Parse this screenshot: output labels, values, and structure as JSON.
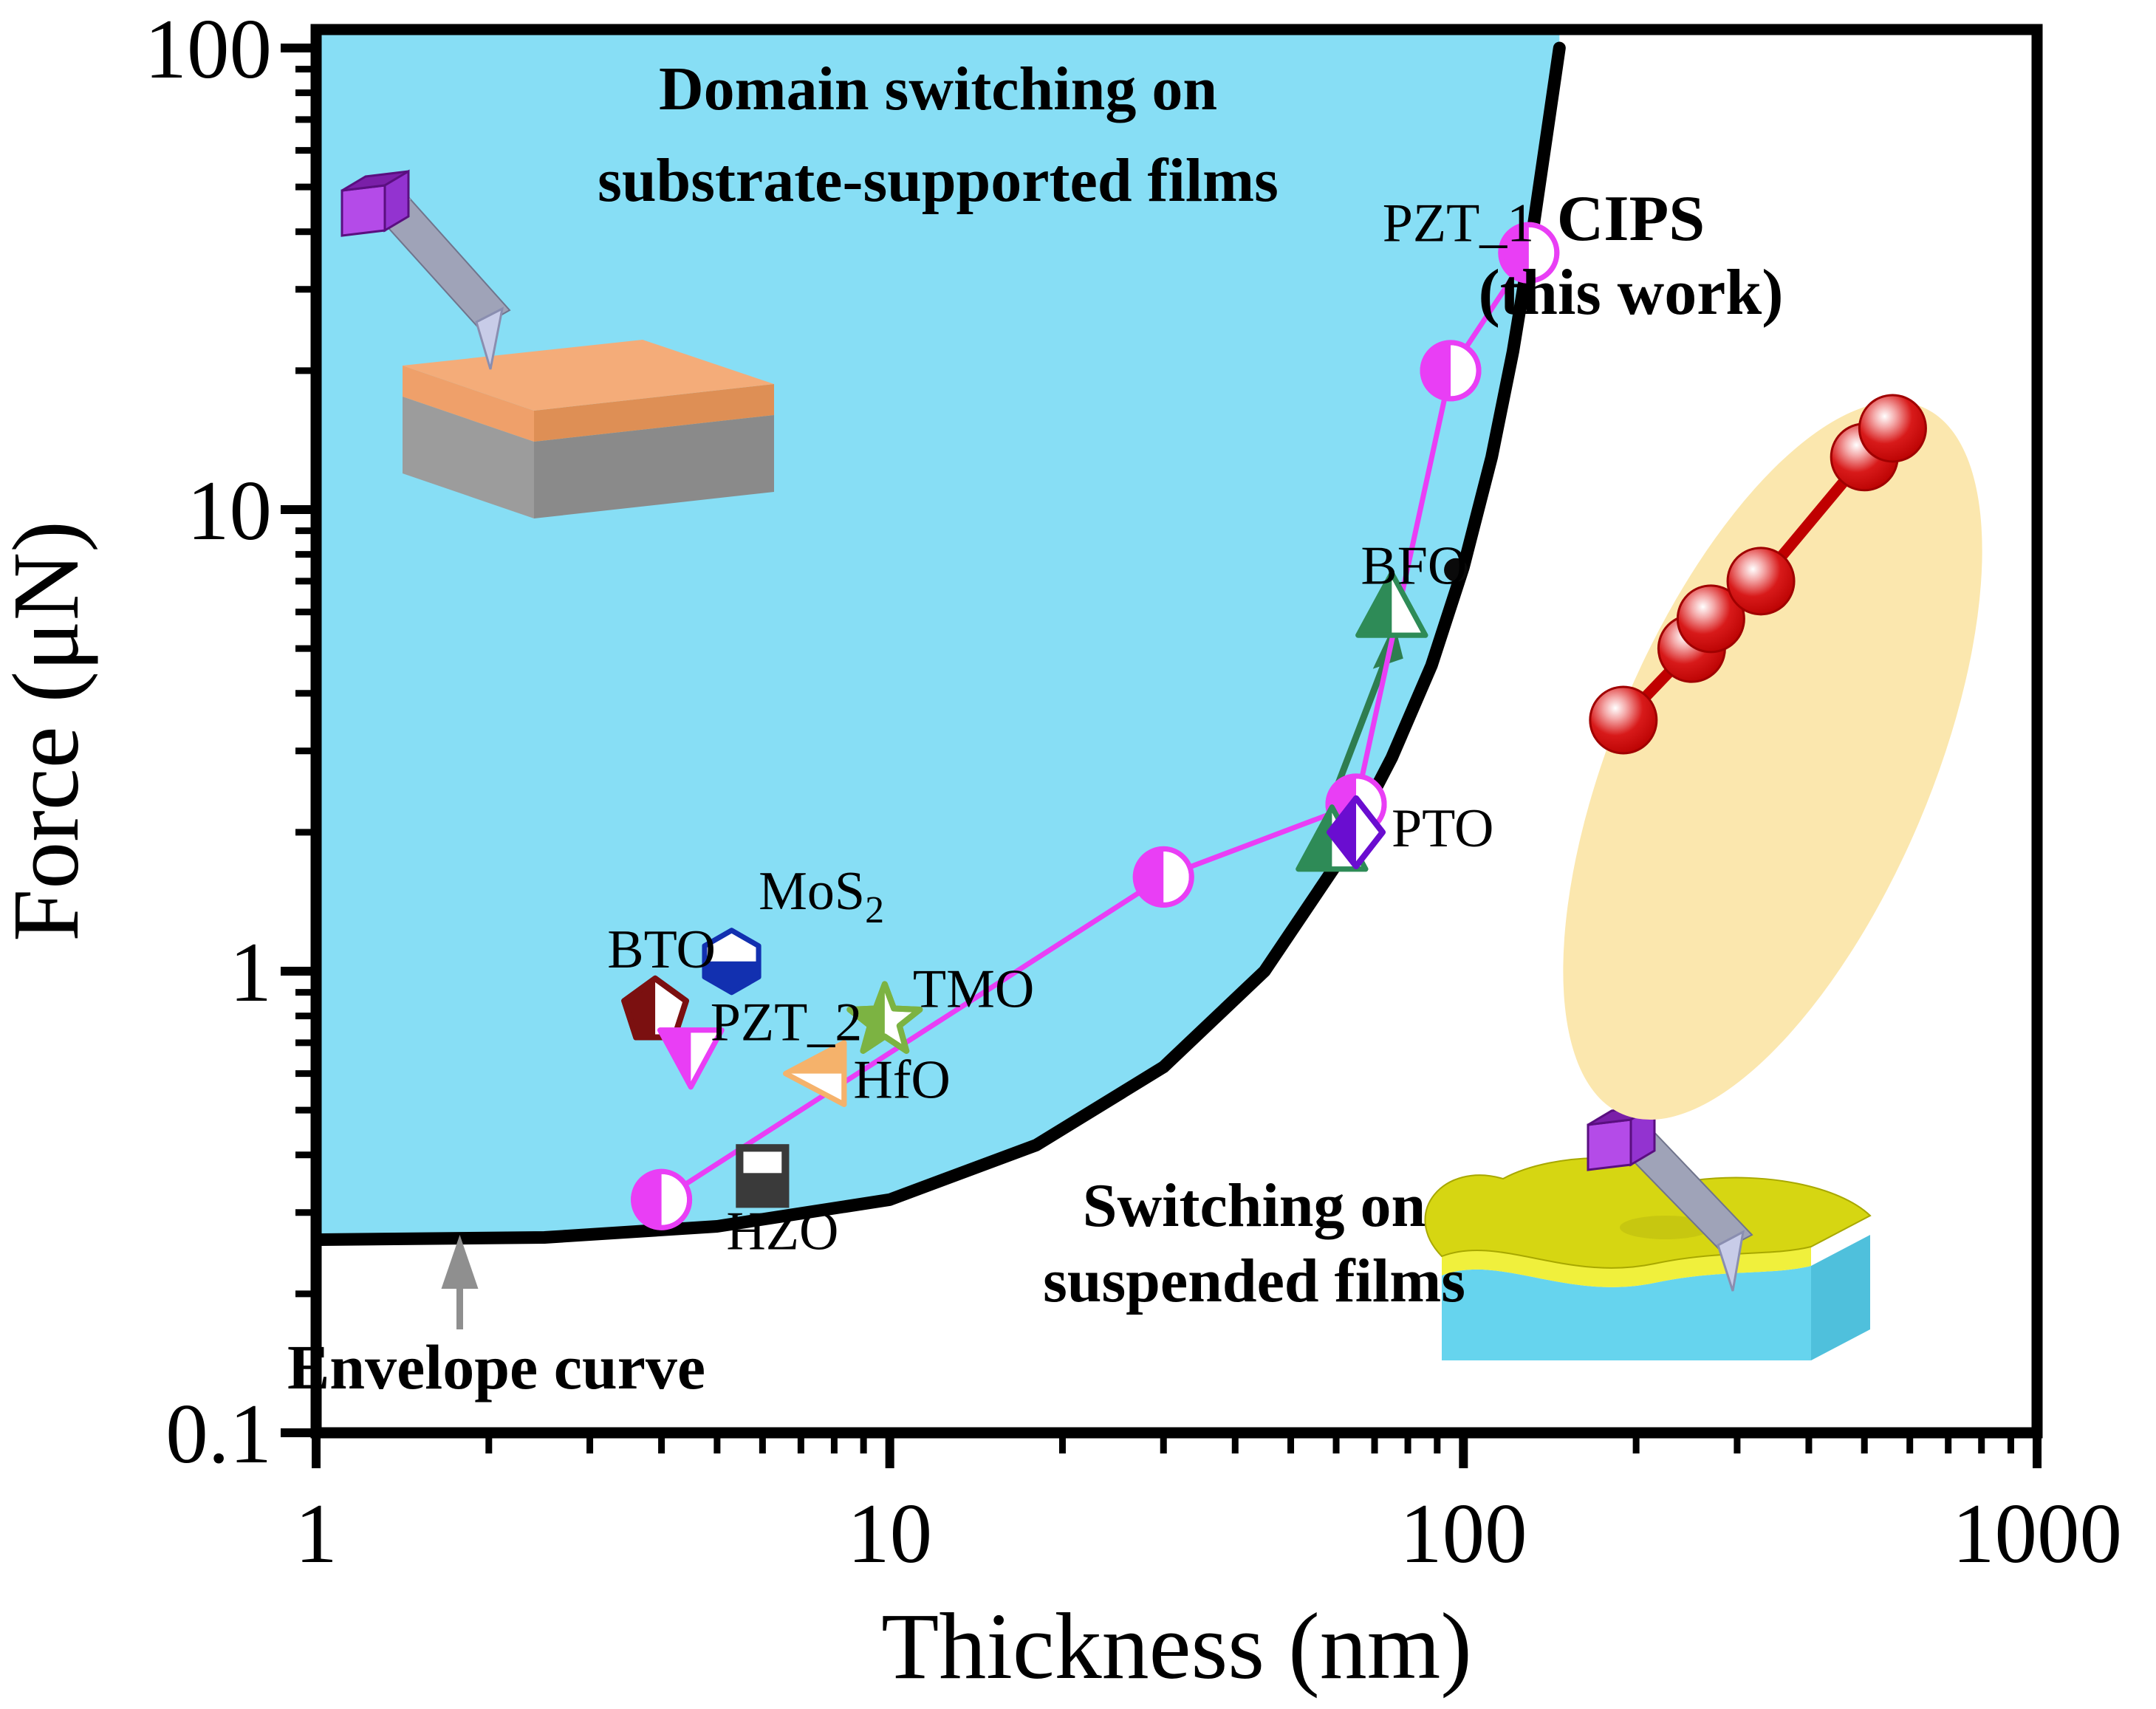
{
  "figure": {
    "kind": "log-log scatter figure",
    "background": "#ffffff"
  },
  "axes": {
    "x": {
      "label": "Thickness (nm)",
      "tick_labels": [
        "1",
        "10",
        "100",
        "1000"
      ],
      "tick_values": [
        1,
        10,
        100,
        1000
      ],
      "scale": "log",
      "range": [
        1,
        1000
      ]
    },
    "y": {
      "label": "Force (μN)",
      "tick_labels": [
        "100",
        "10",
        "1",
        "0.1"
      ],
      "tick_values": [
        100,
        10,
        1,
        0.1
      ],
      "scale": "log",
      "range": [
        0.1,
        100
      ]
    }
  },
  "captions": {
    "domain": {
      "lines": [
        "Domain switching on",
        "substrate-supported films"
      ],
      "color": "#000000"
    },
    "cips": {
      "lines": [
        "CIPS",
        "(this work)"
      ],
      "color": "#B50909"
    },
    "suspended": {
      "lines": [
        "Switching on",
        "suspended films"
      ],
      "color": "#B50909"
    },
    "envelope": {
      "text": "Envelope curve",
      "color": "#8F8F8F"
    }
  },
  "labels": {
    "pzt1": {
      "text": "PZT_1",
      "t": 98,
      "f": 42
    },
    "bfo": {
      "text": "BFO",
      "t": 82,
      "f": 7.6
    },
    "pto": {
      "text": "PTO",
      "t": 92,
      "f": 2.05
    },
    "mos2": {
      "text": "MoS",
      "sub": "2",
      "t": 7.6,
      "f": 1.5
    },
    "bto": {
      "text": "BTO",
      "t": 4.0,
      "f": 1.12
    },
    "pzt2": {
      "text": "PZT_2",
      "t": 6.6,
      "f": 0.78
    },
    "tmo": {
      "text": "TMO",
      "t": 14,
      "f": 0.92
    },
    "hfo": {
      "text": "HfO",
      "t": 10.5,
      "f": 0.585
    },
    "hzo": {
      "text": "HZO",
      "t": 6.5,
      "f": 0.275
    }
  },
  "chart_data": {
    "type": "scatter",
    "title": "",
    "xlabel": "Thickness (nm)",
    "ylabel": "Force (μN)",
    "xscale": "log",
    "yscale": "log",
    "xlim": [
      1,
      1000
    ],
    "ylim": [
      0.1,
      100
    ],
    "grid": false,
    "envelope_curve": [
      [
        1,
        0.262
      ],
      [
        2.5,
        0.265
      ],
      [
        5,
        0.28
      ],
      [
        10,
        0.32
      ],
      [
        18,
        0.42
      ],
      [
        30,
        0.62
      ],
      [
        45,
        1.0
      ],
      [
        60,
        1.7
      ],
      [
        75,
        2.9
      ],
      [
        88,
        4.6
      ],
      [
        100,
        7.5
      ],
      [
        112,
        13
      ],
      [
        122,
        22
      ],
      [
        132,
        40
      ],
      [
        141,
        70
      ],
      [
        147,
        100
      ]
    ],
    "series": [
      {
        "name": "PZT_1",
        "marker": "half-circle",
        "color": "#E93EF5",
        "line": true,
        "points": [
          [
            4,
            0.32
          ],
          [
            30,
            1.6
          ],
          [
            65,
            2.3
          ],
          [
            95,
            20
          ],
          [
            130,
            36
          ]
        ]
      },
      {
        "name": "CIPS",
        "marker": "sphere",
        "color": "#C00000",
        "line": true,
        "points": [
          [
            190,
            3.5
          ],
          [
            250,
            5.0
          ],
          [
            270,
            5.8
          ],
          [
            330,
            7.0
          ],
          [
            500,
            13
          ],
          [
            560,
            15
          ]
        ]
      },
      {
        "name": "BFO",
        "marker": "half-triangle-up",
        "color": "#2E8B57",
        "line": false,
        "points": [
          [
            59,
            1.9
          ],
          [
            75,
            6.1
          ]
        ]
      },
      {
        "name": "PTO",
        "marker": "half-diamond",
        "color": "#6A0DD0",
        "line": false,
        "points": [
          [
            65,
            2.0
          ]
        ]
      },
      {
        "name": "MoS2",
        "marker": "half-hexagon",
        "color": "#1230B0",
        "line": false,
        "points": [
          [
            5.3,
            1.05
          ]
        ]
      },
      {
        "name": "BTO",
        "marker": "half-pentagon",
        "color": "#7B1010",
        "line": false,
        "points": [
          [
            3.9,
            0.82
          ]
        ]
      },
      {
        "name": "PZT_2",
        "marker": "half-triangle-down",
        "color": "#E93EF5",
        "line": false,
        "points": [
          [
            4.5,
            0.66
          ]
        ]
      },
      {
        "name": "TMO",
        "marker": "half-star",
        "color": "#7CB342",
        "line": false,
        "points": [
          [
            9.8,
            0.78
          ]
        ]
      },
      {
        "name": "HfO",
        "marker": "half-triangle-left",
        "color": "#F5B26B",
        "line": false,
        "points": [
          [
            7.5,
            0.6
          ]
        ]
      },
      {
        "name": "HZO",
        "marker": "half-square",
        "color": "#3A3A3A",
        "line": false,
        "points": [
          [
            6.0,
            0.36
          ]
        ]
      }
    ],
    "annotations": {
      "bfo_black_dot": {
        "t": 97,
        "f": 7.4
      },
      "bfo_arrow": {
        "from": [
          59,
          2.35
        ],
        "to": [
          74,
          4.9
        ],
        "color": "#2E7D4F"
      },
      "envelope_arrow": {
        "t": 1.78,
        "color": "#8F8F8F"
      },
      "cips_highlight_ellipse": {
        "color": "#FBE7AE"
      }
    },
    "legend": "none"
  },
  "colors": {
    "region_blue": "#87DEF5",
    "envelope_black": "#000000",
    "pzt1_magenta": "#E93EF5",
    "cips_red": "#C00000",
    "caption_red": "#B50909",
    "highlight_ellipse": "#FBE7AE",
    "bfo_green": "#2E8B57",
    "pto_purple": "#6A0DD0",
    "tmo_green": "#7CB342",
    "hfo_orange": "#F5B26B",
    "mos2_blue": "#1230B0",
    "bto_darkred": "#7B1010",
    "hzo_gray": "#3A3A3A",
    "gray_label": "#8F8F8F"
  }
}
